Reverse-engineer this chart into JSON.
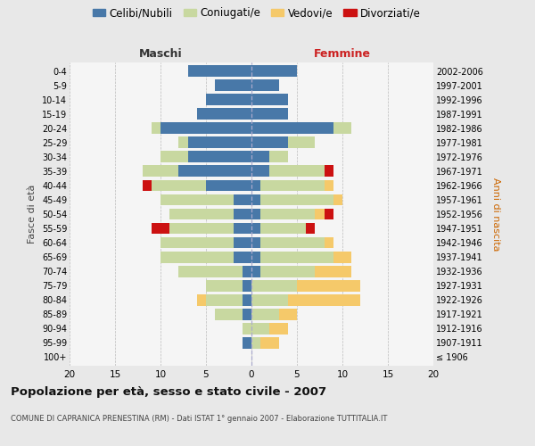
{
  "age_groups": [
    "100+",
    "95-99",
    "90-94",
    "85-89",
    "80-84",
    "75-79",
    "70-74",
    "65-69",
    "60-64",
    "55-59",
    "50-54",
    "45-49",
    "40-44",
    "35-39",
    "30-34",
    "25-29",
    "20-24",
    "15-19",
    "10-14",
    "5-9",
    "0-4"
  ],
  "birth_years": [
    "≤ 1906",
    "1907-1911",
    "1912-1916",
    "1917-1921",
    "1922-1926",
    "1927-1931",
    "1932-1936",
    "1937-1941",
    "1942-1946",
    "1947-1951",
    "1952-1956",
    "1957-1961",
    "1962-1966",
    "1967-1971",
    "1972-1976",
    "1977-1981",
    "1982-1986",
    "1987-1991",
    "1992-1996",
    "1997-2001",
    "2002-2006"
  ],
  "male_celibe": [
    0,
    1,
    0,
    1,
    1,
    1,
    1,
    2,
    2,
    2,
    2,
    2,
    5,
    8,
    7,
    7,
    10,
    6,
    5,
    4,
    7
  ],
  "male_coniugato": [
    0,
    0,
    1,
    3,
    4,
    4,
    7,
    8,
    8,
    7,
    7,
    8,
    6,
    4,
    3,
    1,
    1,
    0,
    0,
    0,
    0
  ],
  "male_vedovo": [
    0,
    0,
    0,
    0,
    1,
    0,
    0,
    0,
    0,
    0,
    0,
    0,
    0,
    0,
    0,
    0,
    0,
    0,
    0,
    0,
    0
  ],
  "male_divorziato": [
    0,
    0,
    0,
    0,
    0,
    0,
    0,
    0,
    0,
    2,
    0,
    0,
    1,
    0,
    0,
    0,
    0,
    0,
    0,
    0,
    0
  ],
  "female_nubile": [
    0,
    0,
    0,
    0,
    0,
    0,
    1,
    1,
    1,
    1,
    1,
    1,
    1,
    2,
    2,
    4,
    9,
    4,
    4,
    3,
    5
  ],
  "female_coniugata": [
    0,
    1,
    2,
    3,
    4,
    5,
    6,
    8,
    7,
    5,
    6,
    8,
    7,
    6,
    2,
    3,
    2,
    0,
    0,
    0,
    0
  ],
  "female_vedova": [
    0,
    2,
    2,
    2,
    8,
    7,
    4,
    2,
    1,
    0,
    1,
    1,
    1,
    0,
    0,
    0,
    0,
    0,
    0,
    0,
    0
  ],
  "female_divorziata": [
    0,
    0,
    0,
    0,
    0,
    0,
    0,
    0,
    0,
    1,
    1,
    0,
    0,
    1,
    0,
    0,
    0,
    0,
    0,
    0,
    0
  ],
  "color_celibe": "#4878a8",
  "color_coniugato": "#c8d8a0",
  "color_vedovo": "#f5c96a",
  "color_divorziato": "#cc1111",
  "xlim": 20,
  "title": "Popolazione per età, sesso e stato civile - 2007",
  "subtitle": "COMUNE DI CAPRANICA PRENESTINA (RM) - Dati ISTAT 1° gennaio 2007 - Elaborazione TUTTITALIA.IT",
  "label_maschi": "Maschi",
  "label_femmine": "Femmine",
  "label_fasce": "Fasce di età",
  "label_anni": "Anni di nascita",
  "legend_labels": [
    "Celibi/Nubili",
    "Coniugati/e",
    "Vedovi/e",
    "Divorziati/e"
  ],
  "bg_color": "#e8e8e8",
  "plot_bg": "#f5f5f5"
}
